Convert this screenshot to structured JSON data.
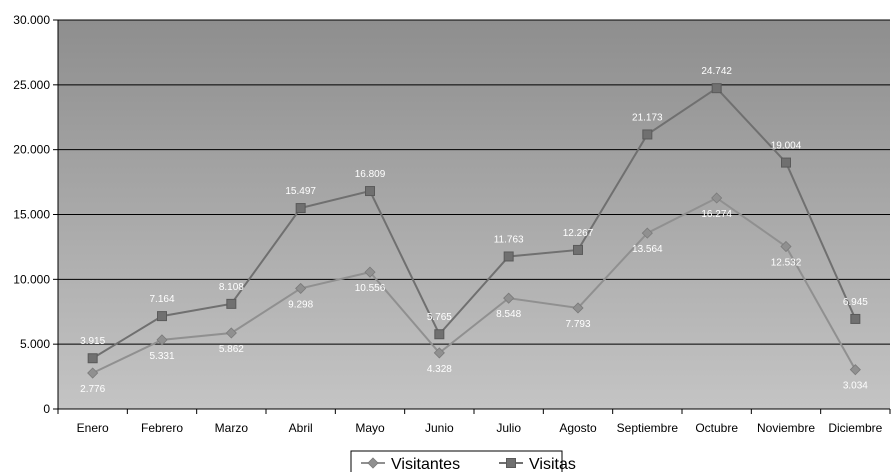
{
  "chart_data": {
    "type": "line",
    "categories": [
      "Enero",
      "Febrero",
      "Marzo",
      "Abril",
      "Mayo",
      "Junio",
      "Julio",
      "Agosto",
      "Septiembre",
      "Octubre",
      "Noviembre",
      "Diciembre"
    ],
    "series": [
      {
        "name": "Visitantes",
        "marker": "diamond",
        "color": "#909090",
        "values": [
          2776,
          5331,
          5862,
          9298,
          10556,
          4328,
          8548,
          7793,
          13564,
          16274,
          12532,
          3034
        ],
        "labels": [
          "2.776",
          "5.331",
          "5.862",
          "9.298",
          "10.556",
          "4.328",
          "8.548",
          "7.793",
          "13.564",
          "16.274",
          "12.532",
          "3.034"
        ]
      },
      {
        "name": "Visitas",
        "marker": "square",
        "color": "#707070",
        "values": [
          3915,
          7164,
          8108,
          15497,
          16809,
          5765,
          11763,
          12267,
          21173,
          24742,
          19004,
          6945
        ],
        "labels": [
          "3.915",
          "7.164",
          "8.108",
          "15.497",
          "16.809",
          "5.765",
          "11.763",
          "12.267",
          "21.173",
          "24.742",
          "19.004",
          "6.945"
        ]
      }
    ],
    "ylim": [
      0,
      30000
    ],
    "yticks": [
      0,
      5000,
      10000,
      15000,
      20000,
      25000,
      30000
    ],
    "ytick_labels": [
      "0",
      "5.000",
      "10.000",
      "15.000",
      "20.000",
      "25.000",
      "30.000"
    ],
    "grid": true,
    "legend_position": "bottom",
    "colors": {
      "plot_top": "#8e8e8e",
      "plot_bottom": "#c4c4c4",
      "grid": "#000000"
    }
  }
}
